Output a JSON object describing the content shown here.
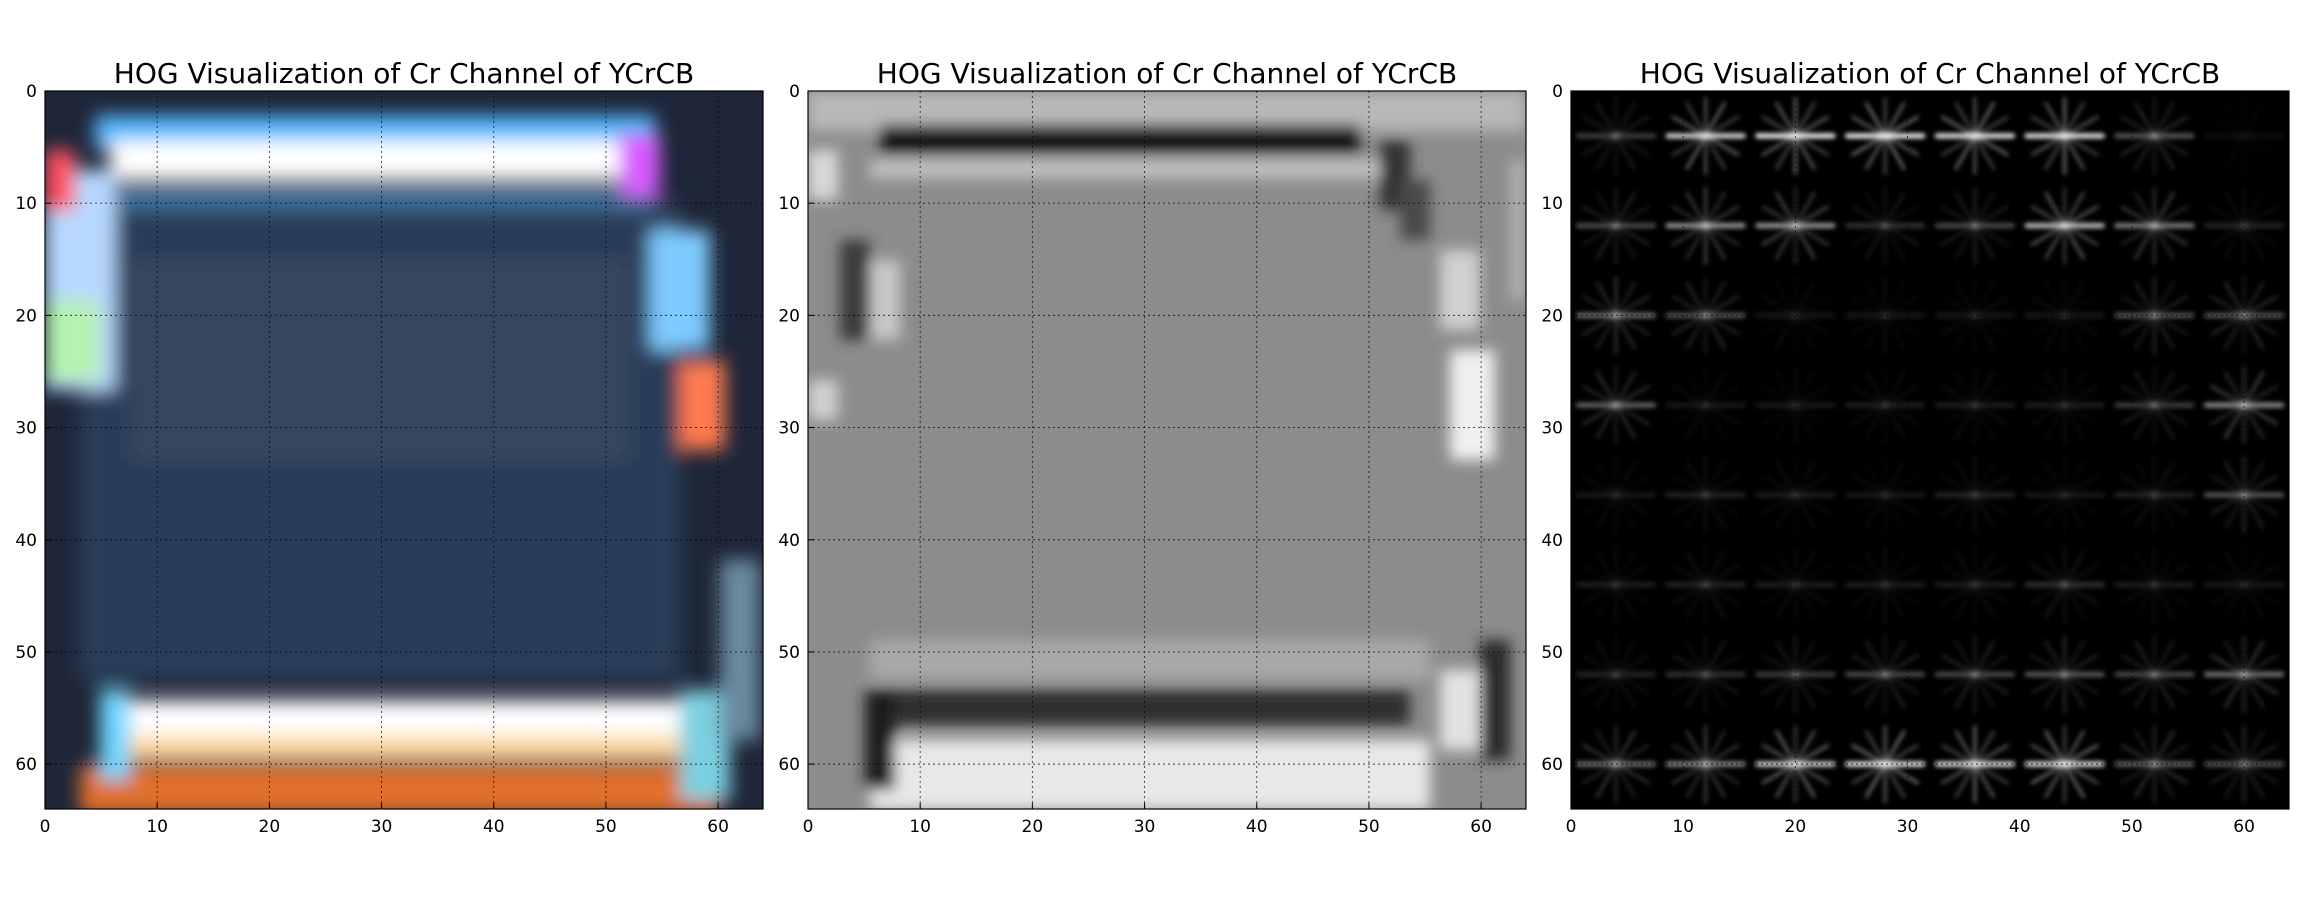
{
  "chart_data": [
    {
      "type": "heatmap",
      "title": "HOG Visualization of Cr Channel of YCrCB",
      "xlabel": "",
      "ylabel": "",
      "xlim": [
        0,
        64
      ],
      "ylim": [
        64,
        0
      ],
      "x_ticks": [
        0,
        10,
        20,
        30,
        40,
        50,
        60
      ],
      "y_ticks": [
        0,
        10,
        20,
        30,
        40,
        50,
        60
      ],
      "grid": true,
      "image": "color vehicle (rear view) 64x64",
      "colors": {
        "top_lights": "#ffffff",
        "top_glow": "#4fb6ff",
        "bottom_lights": "#ffd9a0",
        "bottom_glow": "#e0702a",
        "body": "#2a3a55"
      }
    },
    {
      "type": "heatmap",
      "title": "HOG Visualization of Cr Channel of YCrCB",
      "xlabel": "",
      "ylabel": "",
      "xlim": [
        0,
        64
      ],
      "ylim": [
        64,
        0
      ],
      "x_ticks": [
        0,
        10,
        20,
        30,
        40,
        50,
        60
      ],
      "y_ticks": [
        0,
        10,
        20,
        30,
        40,
        50,
        60
      ],
      "grid": true,
      "image": "grayscale Cr channel 64x64",
      "colors": {
        "base": "#8a8a8a",
        "dark_band": "#141414",
        "light_band": "#e8e8e8"
      }
    },
    {
      "type": "heatmap",
      "title": "HOG Visualization of Cr Channel of YCrCB",
      "xlabel": "",
      "ylabel": "",
      "xlim": [
        0,
        64
      ],
      "ylim": [
        64,
        0
      ],
      "x_ticks": [
        0,
        10,
        20,
        30,
        40,
        50,
        60
      ],
      "y_ticks": [
        0,
        10,
        20,
        30,
        40,
        50,
        60
      ],
      "grid": true,
      "image": "HOG feature visualization 8x8 cells",
      "colors": {
        "background": "#000000",
        "gradient": "#ffffff"
      },
      "hog_cells": [
        [
          0.25,
          0.85,
          0.95,
          0.95,
          0.9,
          0.9,
          0.35,
          0.05
        ],
        [
          0.3,
          0.6,
          0.6,
          0.2,
          0.3,
          0.75,
          0.5,
          0.15
        ],
        [
          0.45,
          0.35,
          0.1,
          0.1,
          0.1,
          0.1,
          0.35,
          0.35
        ],
        [
          0.4,
          0.1,
          0.1,
          0.12,
          0.12,
          0.12,
          0.25,
          0.55
        ],
        [
          0.1,
          0.15,
          0.12,
          0.1,
          0.15,
          0.1,
          0.15,
          0.35
        ],
        [
          0.12,
          0.15,
          0.12,
          0.12,
          0.12,
          0.2,
          0.12,
          0.1
        ],
        [
          0.15,
          0.2,
          0.25,
          0.3,
          0.3,
          0.35,
          0.3,
          0.45
        ],
        [
          0.45,
          0.55,
          0.85,
          0.95,
          0.9,
          0.9,
          0.4,
          0.35
        ]
      ]
    }
  ]
}
